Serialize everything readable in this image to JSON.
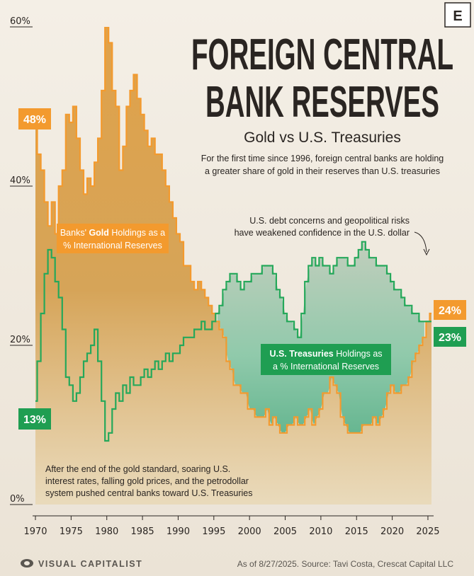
{
  "header": {
    "title_line1": "FOREIGN CENTRAL",
    "title_line2": "BANK RESERVES",
    "subtitle": "Gold vs U.S. Treasuries",
    "description_line1": "For the first time since 1996, foreign central banks are holding",
    "description_line2": "a greater share of gold in their reserves than U.S. treasuries",
    "logo_letter": "E"
  },
  "annotations": {
    "dollar_line1": "U.S. debt concerns and geopolitical risks",
    "dollar_line2": "have weakened confidence in the U.S. dollar",
    "treasury_line1": "After the end of the gold standard, soaring U.S.",
    "treasury_line2": "interest rates, falling gold prices, and the petrodollar",
    "treasury_line3": "system pushed central banks toward U.S. Treasuries"
  },
  "labels": {
    "gold_start": "48%",
    "gold_end": "24%",
    "treasury_start": "13%",
    "treasury_end": "23%",
    "gold_series_line1_pre": "Banks' ",
    "gold_series_line1_bold": "Gold",
    "gold_series_line1_post": " Holdings as a",
    "gold_series_line2": "% International Reserves",
    "treasury_series_line1_bold": "U.S. Treasuries",
    "treasury_series_line1_post": " Holdings as",
    "treasury_series_line2": "a % International Reserves"
  },
  "footer": {
    "brand": "VISUAL CAPITALIST",
    "source": "As of 8/27/2025. Source: Tavi Costa, Crescat Capital LLC"
  },
  "colors": {
    "gold": "#f39a2e",
    "gold_fill": "#dca24e",
    "treasury": "#25a85a",
    "treasury_fill": "#6fbf98",
    "text": "#2a2522",
    "background": "#efe8dc"
  },
  "chart_data": {
    "type": "line",
    "ylim": [
      0,
      60
    ],
    "xlim": [
      1970,
      2025.5
    ],
    "y_ticks": [
      "0%",
      "20%",
      "40%",
      "60%"
    ],
    "y_tick_values": [
      0,
      20,
      40,
      60
    ],
    "x_ticks": [
      "1970",
      "1975",
      "1980",
      "1985",
      "1990",
      "1995",
      "2000",
      "2005",
      "2010",
      "2015",
      "2020",
      "2025"
    ],
    "x_tick_values": [
      1970,
      1975,
      1980,
      1985,
      1990,
      1995,
      2000,
      2005,
      2010,
      2015,
      2020,
      2025
    ],
    "grid": false,
    "series": [
      {
        "key": "gold",
        "name": "Banks' Gold Holdings as a % International Reserves",
        "points": [
          [
            1970,
            48
          ],
          [
            1970.5,
            44
          ],
          [
            1971,
            42
          ],
          [
            1971.5,
            38
          ],
          [
            1972,
            35
          ],
          [
            1972.5,
            38
          ],
          [
            1973,
            34
          ],
          [
            1973.5,
            40
          ],
          [
            1974,
            42
          ],
          [
            1974.5,
            49
          ],
          [
            1975,
            48
          ],
          [
            1975.5,
            50
          ],
          [
            1976,
            46
          ],
          [
            1976.5,
            42
          ],
          [
            1977,
            39
          ],
          [
            1977.5,
            41
          ],
          [
            1978,
            40
          ],
          [
            1978.5,
            43
          ],
          [
            1979,
            46
          ],
          [
            1979.5,
            52
          ],
          [
            1980,
            60
          ],
          [
            1980.5,
            58
          ],
          [
            1981,
            52
          ],
          [
            1981.5,
            50
          ],
          [
            1982,
            42
          ],
          [
            1982.5,
            45
          ],
          [
            1983,
            50
          ],
          [
            1983.5,
            52
          ],
          [
            1984,
            54
          ],
          [
            1984.5,
            51
          ],
          [
            1985,
            49
          ],
          [
            1985.5,
            47
          ],
          [
            1986,
            45
          ],
          [
            1986.5,
            46
          ],
          [
            1987,
            44
          ],
          [
            1987.5,
            44
          ],
          [
            1988,
            42
          ],
          [
            1988.5,
            40
          ],
          [
            1989,
            38
          ],
          [
            1989.5,
            36
          ],
          [
            1990,
            34
          ],
          [
            1990.5,
            33
          ],
          [
            1991,
            30
          ],
          [
            1991.5,
            30
          ],
          [
            1992,
            28
          ],
          [
            1992.5,
            27
          ],
          [
            1993,
            28
          ],
          [
            1993.5,
            27
          ],
          [
            1994,
            26
          ],
          [
            1994.5,
            25
          ],
          [
            1995,
            24
          ],
          [
            1995.5,
            23
          ],
          [
            1996,
            22
          ],
          [
            1996.5,
            21
          ],
          [
            1997,
            18
          ],
          [
            1997.5,
            17
          ],
          [
            1998,
            15
          ],
          [
            1998.5,
            15
          ],
          [
            1999,
            14
          ],
          [
            1999.5,
            14
          ],
          [
            2000,
            12
          ],
          [
            2000.5,
            12
          ],
          [
            2001,
            11
          ],
          [
            2001.5,
            11
          ],
          [
            2002,
            11
          ],
          [
            2002.5,
            12
          ],
          [
            2003,
            10
          ],
          [
            2003.5,
            11
          ],
          [
            2004,
            10
          ],
          [
            2004.5,
            9
          ],
          [
            2005,
            9
          ],
          [
            2005.5,
            10
          ],
          [
            2006,
            10
          ],
          [
            2006.5,
            11
          ],
          [
            2007,
            10
          ],
          [
            2007.5,
            10
          ],
          [
            2008,
            11
          ],
          [
            2008.5,
            12
          ],
          [
            2009,
            10
          ],
          [
            2009.5,
            11
          ],
          [
            2010,
            12
          ],
          [
            2010.5,
            14
          ],
          [
            2011,
            14
          ],
          [
            2011.5,
            16
          ],
          [
            2012,
            15
          ],
          [
            2012.5,
            14
          ],
          [
            2013,
            11
          ],
          [
            2013.5,
            10
          ],
          [
            2014,
            9
          ],
          [
            2014.5,
            9
          ],
          [
            2015,
            9
          ],
          [
            2015.5,
            9
          ],
          [
            2016,
            10
          ],
          [
            2016.5,
            10
          ],
          [
            2017,
            10
          ],
          [
            2017.5,
            11
          ],
          [
            2018,
            10
          ],
          [
            2018.5,
            11
          ],
          [
            2019,
            12
          ],
          [
            2019.5,
            14
          ],
          [
            2020,
            15
          ],
          [
            2020.5,
            14
          ],
          [
            2021,
            14
          ],
          [
            2021.5,
            15
          ],
          [
            2022,
            15
          ],
          [
            2022.5,
            16
          ],
          [
            2023,
            18
          ],
          [
            2023.5,
            19
          ],
          [
            2024,
            20
          ],
          [
            2024.5,
            21
          ],
          [
            2025,
            23
          ],
          [
            2025.5,
            24
          ]
        ]
      },
      {
        "key": "treasury",
        "name": "U.S. Treasuries Holdings as a % International Reserves",
        "points": [
          [
            1970,
            13
          ],
          [
            1970.5,
            18
          ],
          [
            1971,
            24
          ],
          [
            1971.5,
            29
          ],
          [
            1972,
            32
          ],
          [
            1972.5,
            31
          ],
          [
            1973,
            28
          ],
          [
            1973.5,
            26
          ],
          [
            1974,
            22
          ],
          [
            1974.5,
            16
          ],
          [
            1975,
            15
          ],
          [
            1975.5,
            13
          ],
          [
            1976,
            14
          ],
          [
            1976.5,
            16
          ],
          [
            1977,
            18
          ],
          [
            1977.5,
            19
          ],
          [
            1978,
            20
          ],
          [
            1978.5,
            22
          ],
          [
            1979,
            18
          ],
          [
            1979.5,
            13
          ],
          [
            1980,
            8
          ],
          [
            1980.5,
            9
          ],
          [
            1981,
            12
          ],
          [
            1981.5,
            14
          ],
          [
            1982,
            13
          ],
          [
            1982.5,
            15
          ],
          [
            1983,
            14
          ],
          [
            1983.5,
            16
          ],
          [
            1984,
            15
          ],
          [
            1984.5,
            15
          ],
          [
            1985,
            16
          ],
          [
            1985.5,
            17
          ],
          [
            1986,
            16
          ],
          [
            1986.5,
            17
          ],
          [
            1987,
            18
          ],
          [
            1987.5,
            17
          ],
          [
            1988,
            18
          ],
          [
            1988.5,
            19
          ],
          [
            1989,
            18
          ],
          [
            1989.5,
            19
          ],
          [
            1990,
            19
          ],
          [
            1990.5,
            20
          ],
          [
            1991,
            21
          ],
          [
            1991.5,
            21
          ],
          [
            1992,
            21
          ],
          [
            1992.5,
            22
          ],
          [
            1993,
            22
          ],
          [
            1993.5,
            23
          ],
          [
            1994,
            22
          ],
          [
            1994.5,
            22
          ],
          [
            1995,
            23
          ],
          [
            1995.5,
            24
          ],
          [
            1996,
            25
          ],
          [
            1996.5,
            27
          ],
          [
            1997,
            28
          ],
          [
            1997.5,
            29
          ],
          [
            1998,
            29
          ],
          [
            1998.5,
            28
          ],
          [
            1999,
            27
          ],
          [
            1999.5,
            28
          ],
          [
            2000,
            28
          ],
          [
            2000.5,
            29
          ],
          [
            2001,
            29
          ],
          [
            2001.5,
            29
          ],
          [
            2002,
            30
          ],
          [
            2002.5,
            30
          ],
          [
            2003,
            30
          ],
          [
            2003.5,
            29
          ],
          [
            2004,
            27
          ],
          [
            2004.5,
            26
          ],
          [
            2005,
            24
          ],
          [
            2005.5,
            23
          ],
          [
            2006,
            23
          ],
          [
            2006.5,
            22
          ],
          [
            2007,
            21
          ],
          [
            2007.5,
            24
          ],
          [
            2008,
            28
          ],
          [
            2008.5,
            30
          ],
          [
            2009,
            31
          ],
          [
            2009.5,
            30
          ],
          [
            2010,
            31
          ],
          [
            2010.5,
            30
          ],
          [
            2011,
            30
          ],
          [
            2011.5,
            29
          ],
          [
            2012,
            30
          ],
          [
            2012.5,
            31
          ],
          [
            2013,
            31
          ],
          [
            2013.5,
            31
          ],
          [
            2014,
            30
          ],
          [
            2014.5,
            30
          ],
          [
            2015,
            31
          ],
          [
            2015.5,
            32
          ],
          [
            2016,
            33
          ],
          [
            2016.5,
            32
          ],
          [
            2017,
            31
          ],
          [
            2017.5,
            31
          ],
          [
            2018,
            30
          ],
          [
            2018.5,
            30
          ],
          [
            2019,
            30
          ],
          [
            2019.5,
            29
          ],
          [
            2020,
            28
          ],
          [
            2020.5,
            27
          ],
          [
            2021,
            27
          ],
          [
            2021.5,
            26
          ],
          [
            2022,
            25
          ],
          [
            2022.5,
            25
          ],
          [
            2023,
            24
          ],
          [
            2023.5,
            24
          ],
          [
            2024,
            23
          ],
          [
            2024.5,
            23
          ],
          [
            2025,
            23
          ],
          [
            2025.5,
            23
          ]
        ]
      }
    ]
  }
}
